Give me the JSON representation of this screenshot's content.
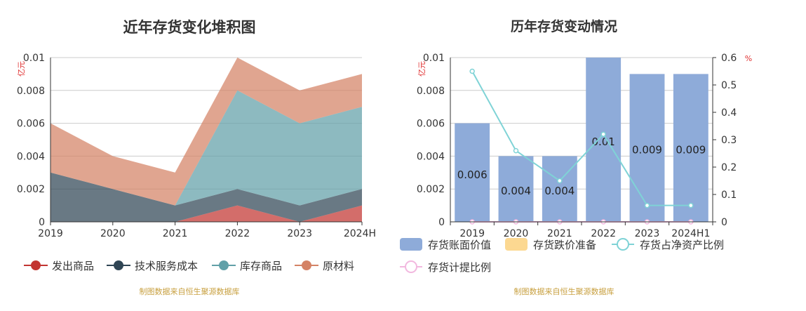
{
  "chart_data": [
    {
      "type": "area",
      "stacked": true,
      "title": "近年存货变化堆积图",
      "ylabel": "亿元",
      "ylim": [
        0,
        0.01
      ],
      "yticks": [
        "0",
        "0.002",
        "0.004",
        "0.006",
        "0.008",
        "0.01"
      ],
      "categories": [
        "2019",
        "2020",
        "2021",
        "2022",
        "2023",
        "2024H"
      ],
      "grid": true,
      "legend_position": "bottom",
      "series": [
        {
          "name": "发出商品",
          "color": "#c23531",
          "legend_color": "#c23531",
          "values": [
            0,
            0,
            0,
            0.001,
            0,
            0.001
          ]
        },
        {
          "name": "技术服务成本",
          "color": "#2f4554",
          "legend_color": "#2f4554",
          "values": [
            0.003,
            0.002,
            0.001,
            0.001,
            0.001,
            0.001
          ]
        },
        {
          "name": "库存商品",
          "color": "#61a0a8",
          "legend_color": "#61a0a8",
          "values": [
            0,
            0,
            0,
            0.006,
            0.005,
            0.005
          ]
        },
        {
          "name": "原材料",
          "color": "#d48265",
          "legend_color": "#d48265",
          "values": [
            0.003,
            0.002,
            0.002,
            0.002,
            0.002,
            0.002
          ]
        }
      ],
      "source_note": "制图数据来自恒生聚源数据库"
    },
    {
      "type": "bar",
      "title": "历年存货变动情况",
      "ylabel": "亿元",
      "y2label": "%",
      "ylim": [
        0,
        0.01
      ],
      "y2lim": [
        0,
        0.6
      ],
      "yticks": [
        "0",
        "0.002",
        "0.004",
        "0.006",
        "0.008",
        "0.01"
      ],
      "y2ticks": [
        "0",
        "0.1",
        "0.2",
        "0.3",
        "0.4",
        "0.5",
        "0.6"
      ],
      "categories": [
        "2019",
        "2020",
        "2021",
        "2022",
        "2023",
        "2024H1"
      ],
      "grid": true,
      "legend_position": "bottom",
      "series": [
        {
          "name": "存货账面价值",
          "type": "bar",
          "color": "#8eabd9",
          "values": [
            0.006,
            0.004,
            0.004,
            0.01,
            0.009,
            0.009
          ],
          "labels": [
            "0.006",
            "0.004",
            "0.004",
            "0.01",
            "0.009",
            "0.009"
          ]
        },
        {
          "name": "存货跌价准备",
          "type": "bar",
          "color": "#fcd891",
          "values": [
            0,
            0,
            0,
            0,
            0,
            0
          ]
        },
        {
          "name": "存货占净资产比例",
          "type": "line",
          "axis": "right",
          "color": "#7fd3d6",
          "values": [
            0.55,
            0.26,
            0.15,
            0.32,
            0.06,
            0.06
          ]
        },
        {
          "name": "存货计提比例",
          "type": "line",
          "axis": "right",
          "color": "#f2b8df",
          "values": [
            0,
            0,
            0,
            0,
            0,
            0
          ]
        }
      ],
      "source_note": "制图数据来自恒生聚源数据库"
    }
  ]
}
